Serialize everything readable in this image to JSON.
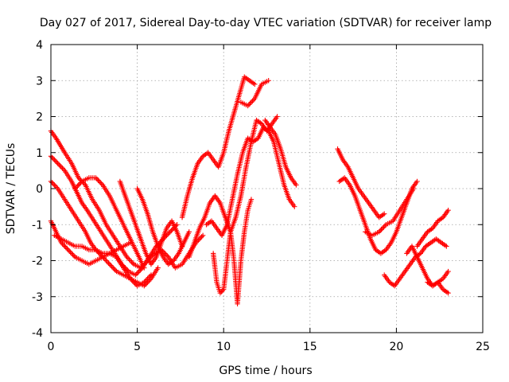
{
  "chart_data": {
    "type": "scatter",
    "title": "Day 027 of 2017, Sidereal Day-to-day VTEC variation (SDTVAR) for receiver lamp",
    "xlabel": "GPS time / hours",
    "ylabel": "SDTVAR / TECUs",
    "xlim": [
      0,
      25
    ],
    "ylim": [
      -4,
      4
    ],
    "xticks": [
      0,
      5,
      10,
      15,
      20,
      25
    ],
    "yticks": [
      -4,
      -3,
      -2,
      -1,
      0,
      1,
      2,
      3,
      4
    ],
    "grid": true,
    "marker": "+",
    "color": "#ff0000",
    "series": [
      {
        "x": [
          0.0,
          0.3,
          0.8,
          1.2,
          1.6,
          2.0,
          2.4,
          2.8,
          3.2,
          3.6,
          4.0,
          4.4,
          4.8,
          5.2,
          5.6,
          6.0,
          6.4,
          6.8,
          7.2,
          7.6,
          8.0,
          8.4,
          8.8
        ],
        "y": [
          1.6,
          1.4,
          1.0,
          0.7,
          0.3,
          0.1,
          -0.3,
          -0.6,
          -1.0,
          -1.3,
          -1.6,
          -1.9,
          -2.1,
          -2.2,
          -2.0,
          -1.8,
          -1.7,
          -1.9,
          -2.2,
          -2.1,
          -1.8,
          -1.5,
          -1.3
        ]
      },
      {
        "x": [
          0.0,
          0.4,
          0.8,
          1.2,
          1.5,
          1.8,
          2.1,
          2.5,
          2.9,
          3.3,
          3.7,
          4.1,
          4.5,
          4.9,
          5.3,
          5.7,
          6.1,
          6.5,
          6.9,
          7.3
        ],
        "y": [
          0.9,
          0.7,
          0.5,
          0.2,
          -0.1,
          -0.4,
          -0.6,
          -0.9,
          -1.2,
          -1.5,
          -1.8,
          -2.1,
          -2.3,
          -2.4,
          -2.2,
          -1.9,
          -1.6,
          -1.4,
          -1.2,
          -1.0
        ]
      },
      {
        "x": [
          0.0,
          0.4,
          0.8,
          1.2,
          1.6,
          2.0,
          2.3,
          2.6,
          3.0,
          3.4,
          3.8,
          4.2,
          4.6,
          5.0,
          5.4,
          5.8,
          6.2
        ],
        "y": [
          0.2,
          0.0,
          -0.3,
          -0.6,
          -0.9,
          -1.2,
          -1.5,
          -1.7,
          -1.9,
          -2.1,
          -2.3,
          -2.4,
          -2.5,
          -2.6,
          -2.7,
          -2.5,
          -2.2
        ]
      },
      {
        "x": [
          0.0,
          0.3,
          0.6,
          1.0,
          1.4,
          1.8,
          2.2,
          2.6,
          3.0,
          3.4,
          3.8,
          4.2,
          4.6,
          5.0,
          5.4,
          5.8
        ],
        "y": [
          -0.9,
          -1.2,
          -1.5,
          -1.7,
          -1.9,
          -2.0,
          -2.1,
          -2.0,
          -1.9,
          -1.8,
          -1.9,
          -2.2,
          -2.5,
          -2.7,
          -2.6,
          -2.4
        ]
      },
      {
        "x": [
          0.2,
          0.6,
          1.0,
          1.4,
          1.8,
          2.2,
          2.6,
          3.0,
          3.4,
          3.8,
          4.2,
          4.6
        ],
        "y": [
          -1.3,
          -1.4,
          -1.5,
          -1.6,
          -1.6,
          -1.7,
          -1.7,
          -1.8,
          -1.8,
          -1.7,
          -1.6,
          -1.5
        ]
      },
      {
        "x": [
          1.4,
          1.8,
          2.2,
          2.6,
          3.0,
          3.4,
          3.8,
          4.2,
          4.6,
          5.0,
          5.4
        ],
        "y": [
          0.0,
          0.2,
          0.3,
          0.3,
          0.1,
          -0.2,
          -0.6,
          -1.0,
          -1.4,
          -1.8,
          -2.2
        ]
      },
      {
        "x": [
          4.0,
          4.3,
          4.6,
          4.9,
          5.2,
          5.5,
          5.8,
          6.1,
          6.4,
          6.7,
          7.0,
          7.3,
          7.6
        ],
        "y": [
          0.2,
          -0.2,
          -0.6,
          -1.0,
          -1.4,
          -1.8,
          -2.1,
          -1.9,
          -1.5,
          -1.1,
          -0.9,
          -1.2,
          -1.6
        ]
      },
      {
        "x": [
          5.0,
          5.3,
          5.6,
          5.9,
          6.2,
          6.5,
          6.8,
          7.1,
          7.4,
          7.7,
          8.0
        ],
        "y": [
          0.0,
          -0.3,
          -0.7,
          -1.2,
          -1.6,
          -1.9,
          -2.1,
          -2.0,
          -1.8,
          -1.5,
          -1.2
        ]
      },
      {
        "x": [
          7.6,
          7.9,
          8.2,
          8.5,
          8.8,
          9.1,
          9.4,
          9.7,
          10.0,
          10.3,
          10.6,
          10.9,
          11.2,
          11.5,
          11.8
        ],
        "y": [
          -0.8,
          -0.2,
          0.3,
          0.7,
          0.9,
          1.0,
          0.8,
          0.6,
          1.0,
          1.6,
          2.1,
          2.6,
          3.1,
          3.0,
          2.9
        ]
      },
      {
        "x": [
          11.0,
          11.4,
          11.8,
          12.2,
          12.6
        ],
        "y": [
          2.4,
          2.3,
          2.5,
          2.9,
          3.0
        ]
      },
      {
        "x": [
          8.0,
          8.3,
          8.6,
          8.9,
          9.2,
          9.5,
          9.8,
          10.1,
          10.4,
          10.7,
          11.0,
          11.3,
          11.6,
          11.9,
          12.2,
          12.5,
          12.8,
          13.1
        ],
        "y": [
          -1.9,
          -1.5,
          -1.1,
          -0.8,
          -0.4,
          -0.2,
          -0.4,
          -0.8,
          -1.2,
          -0.8,
          -0.2,
          0.6,
          1.3,
          1.9,
          1.8,
          1.6,
          1.8,
          2.0
        ]
      },
      {
        "x": [
          9.0,
          9.3,
          9.6,
          9.9,
          10.2,
          10.5,
          10.8,
          11.1,
          11.4,
          11.7,
          12.0,
          12.3,
          12.6,
          12.9,
          13.2,
          13.5,
          13.8,
          14.1
        ],
        "y": [
          -1.0,
          -0.9,
          -1.1,
          -1.3,
          -1.0,
          -0.3,
          0.4,
          1.0,
          1.4,
          1.3,
          1.4,
          1.7,
          1.6,
          1.3,
          0.7,
          0.1,
          -0.3,
          -0.5
        ]
      },
      {
        "x": [
          9.4,
          9.6,
          9.8,
          10.0,
          10.2,
          10.4,
          10.6,
          10.8,
          11.0,
          11.2,
          11.4,
          11.6
        ],
        "y": [
          -1.8,
          -2.6,
          -2.9,
          -2.8,
          -2.0,
          -1.2,
          -2.0,
          -3.2,
          -2.0,
          -1.2,
          -0.6,
          -0.3
        ]
      },
      {
        "x": [
          12.4,
          12.7,
          13.0,
          13.3,
          13.6,
          13.9,
          14.2
        ],
        "y": [
          1.9,
          1.7,
          1.5,
          1.1,
          0.6,
          0.3,
          0.1
        ]
      },
      {
        "x": [
          16.6,
          16.9,
          17.2,
          17.5,
          17.8,
          18.1,
          18.4,
          18.7,
          19.0,
          19.3
        ],
        "y": [
          1.1,
          0.8,
          0.6,
          0.3,
          0.0,
          -0.2,
          -0.4,
          -0.6,
          -0.8,
          -0.7
        ]
      },
      {
        "x": [
          16.7,
          17.0,
          17.3,
          17.6,
          17.9,
          18.2,
          18.5,
          18.8,
          19.1,
          19.4,
          19.7,
          20.0,
          20.3,
          20.6,
          20.9,
          21.2
        ],
        "y": [
          0.2,
          0.3,
          0.1,
          -0.2,
          -0.6,
          -1.0,
          -1.4,
          -1.7,
          -1.8,
          -1.7,
          -1.5,
          -1.2,
          -0.8,
          -0.4,
          0.0,
          0.2
        ]
      },
      {
        "x": [
          18.2,
          18.6,
          19.0,
          19.4,
          19.8,
          20.2,
          20.6,
          21.0
        ],
        "y": [
          -1.2,
          -1.3,
          -1.2,
          -1.0,
          -0.9,
          -0.6,
          -0.3,
          0.0
        ]
      },
      {
        "x": [
          19.3,
          19.6,
          19.9,
          20.2,
          20.5,
          20.8,
          21.1,
          21.4,
          21.7,
          22.0,
          22.3,
          22.6,
          22.9
        ],
        "y": [
          -2.4,
          -2.6,
          -2.7,
          -2.5,
          -2.3,
          -2.1,
          -1.9,
          -1.8,
          -1.6,
          -1.5,
          -1.4,
          -1.5,
          -1.6
        ]
      },
      {
        "x": [
          21.2,
          21.5,
          21.8,
          22.1,
          22.4,
          22.7,
          23.0
        ],
        "y": [
          -1.6,
          -1.4,
          -1.2,
          -1.1,
          -0.9,
          -0.8,
          -0.6
        ]
      },
      {
        "x": [
          20.6,
          20.9,
          21.2,
          21.5,
          21.8,
          22.1,
          22.4,
          22.7,
          23.0
        ],
        "y": [
          -1.8,
          -1.6,
          -1.9,
          -2.2,
          -2.5,
          -2.7,
          -2.6,
          -2.8,
          -2.9
        ]
      },
      {
        "x": [
          21.8,
          22.1,
          22.4,
          22.7,
          23.0
        ],
        "y": [
          -2.6,
          -2.7,
          -2.6,
          -2.5,
          -2.3
        ]
      }
    ]
  }
}
